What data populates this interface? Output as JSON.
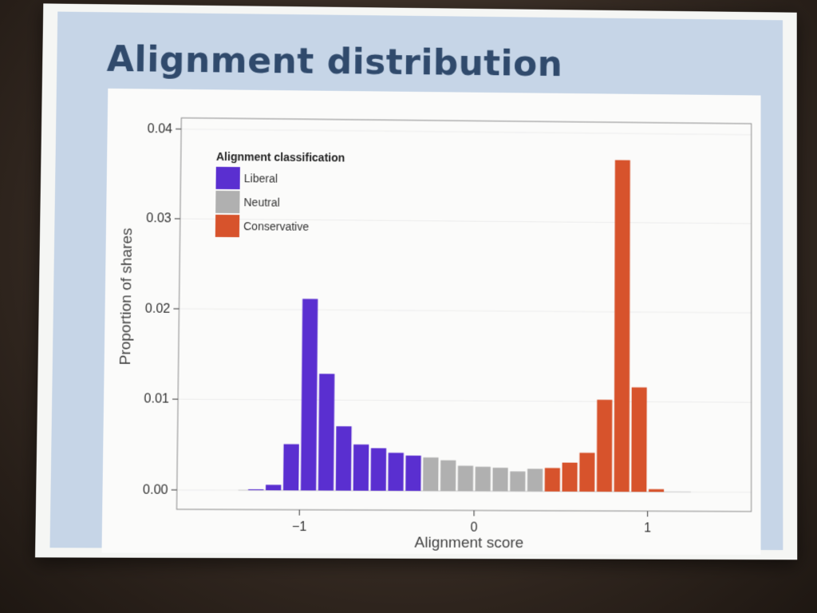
{
  "slide": {
    "title": "Alignment distribution"
  },
  "chart_data": {
    "type": "bar",
    "xlabel": "Alignment score",
    "ylabel": "Proportion of shares",
    "xlim": [
      -1.7,
      1.6
    ],
    "ylim": [
      0,
      0.04
    ],
    "x_ticks": [
      -1,
      0,
      1
    ],
    "x_tick_labels": [
      "−1",
      "0",
      "1"
    ],
    "y_ticks": [
      0,
      0.01,
      0.02,
      0.03,
      0.04
    ],
    "y_tick_labels": [
      "0.00",
      "0.01",
      "0.02",
      "0.03",
      "0.04"
    ],
    "grid": true,
    "legend": {
      "title": "Alignment classification",
      "placement": "top-left",
      "entries": [
        {
          "key": "liberal",
          "label": "Liberal",
          "color": "#5a2fd0"
        },
        {
          "key": "neutral",
          "label": "Neutral",
          "color": "#b0b0b0"
        },
        {
          "key": "conservative",
          "label": "Conservative",
          "color": "#d7532c"
        }
      ]
    },
    "bin_width": 0.1,
    "bins": [
      {
        "x": -1.25,
        "y": 0.0001,
        "class": "liberal"
      },
      {
        "x": -1.15,
        "y": 0.0006,
        "class": "liberal"
      },
      {
        "x": -1.05,
        "y": 0.0051,
        "class": "liberal"
      },
      {
        "x": -0.95,
        "y": 0.0212,
        "class": "liberal"
      },
      {
        "x": -0.85,
        "y": 0.0129,
        "class": "liberal"
      },
      {
        "x": -0.75,
        "y": 0.0071,
        "class": "liberal"
      },
      {
        "x": -0.65,
        "y": 0.0051,
        "class": "liberal"
      },
      {
        "x": -0.55,
        "y": 0.0047,
        "class": "liberal"
      },
      {
        "x": -0.45,
        "y": 0.0042,
        "class": "liberal"
      },
      {
        "x": -0.35,
        "y": 0.0039,
        "class": "liberal"
      },
      {
        "x": -0.25,
        "y": 0.0037,
        "class": "neutral"
      },
      {
        "x": -0.15,
        "y": 0.0034,
        "class": "neutral"
      },
      {
        "x": -0.05,
        "y": 0.0028,
        "class": "neutral"
      },
      {
        "x": 0.05,
        "y": 0.0027,
        "class": "neutral"
      },
      {
        "x": 0.15,
        "y": 0.0026,
        "class": "neutral"
      },
      {
        "x": 0.25,
        "y": 0.0022,
        "class": "neutral"
      },
      {
        "x": 0.35,
        "y": 0.0025,
        "class": "neutral"
      },
      {
        "x": 0.45,
        "y": 0.0026,
        "class": "conservative"
      },
      {
        "x": 0.55,
        "y": 0.0032,
        "class": "conservative"
      },
      {
        "x": 0.65,
        "y": 0.0043,
        "class": "conservative"
      },
      {
        "x": 0.75,
        "y": 0.0102,
        "class": "conservative"
      },
      {
        "x": 0.85,
        "y": 0.037,
        "class": "conservative"
      },
      {
        "x": 0.95,
        "y": 0.0116,
        "class": "conservative"
      },
      {
        "x": 1.05,
        "y": 0.0003,
        "class": "conservative"
      }
    ]
  }
}
